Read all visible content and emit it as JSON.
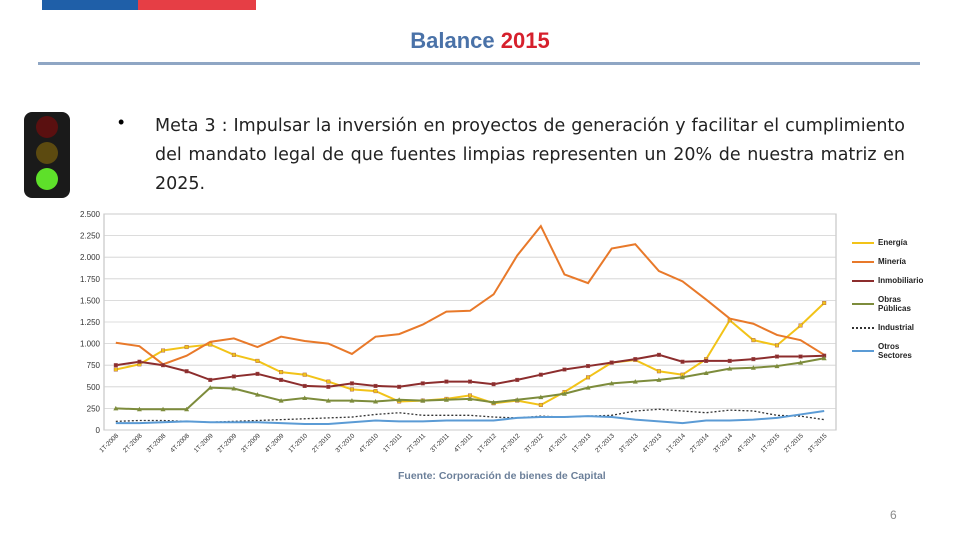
{
  "slide": {
    "title": "Balance",
    "title_year": "2015",
    "bullet": "Meta 3 : Impulsar la inversión en proyectos de generación y facilitar el cumplimiento del mandato legal de que fuentes limpias representen un 20% de nuestra matriz en 2025.",
    "source": "Fuente: Corporación de bienes de Capital",
    "page_number": "6"
  },
  "chart_data": {
    "type": "line",
    "categories": [
      "1T-2008",
      "2T-2008",
      "3T-2008",
      "4T-2008",
      "1T-2009",
      "2T-2009",
      "3T-2009",
      "4T-2009",
      "1T-2010",
      "2T-2010",
      "3T-2010",
      "4T-2010",
      "1T-2011",
      "2T-2011",
      "3T-2011",
      "4T-2011",
      "1T-2012",
      "2T-2012",
      "3T-2012",
      "4T-2012",
      "1T-2013",
      "2T-2013",
      "3T-2013",
      "4T-2013",
      "1T-2014",
      "2T-2014",
      "3T-2014",
      "4T-2014",
      "1T-2015",
      "2T-2015",
      "3T-2015"
    ],
    "ylim": [
      0,
      2500
    ],
    "yticks": [
      0,
      250,
      500,
      750,
      {
        "value": 1000,
        "label": "1.000"
      },
      {
        "value": 1250,
        "label": "1.250"
      },
      {
        "value": 1500,
        "label": "1.500"
      },
      {
        "value": 1750,
        "label": "1.750"
      },
      {
        "value": 2000,
        "label": "2.000"
      },
      {
        "value": 2250,
        "label": "2.250"
      },
      {
        "value": 2500,
        "label": "2.500"
      }
    ],
    "grid": true,
    "series": [
      {
        "name": "Energía",
        "color": "#f2c318",
        "marker": "square",
        "values": [
          700,
          760,
          920,
          960,
          990,
          870,
          800,
          670,
          640,
          560,
          470,
          450,
          330,
          340,
          360,
          400,
          310,
          340,
          290,
          440,
          610,
          780,
          810,
          680,
          640,
          820,
          1270,
          1040,
          980,
          1210,
          1470
        ]
      },
      {
        "name": "Minería",
        "color": "#e8792a",
        "values": [
          1010,
          970,
          760,
          860,
          1020,
          1060,
          960,
          1080,
          1030,
          1000,
          880,
          1080,
          1110,
          1220,
          1370,
          1380,
          1570,
          2020,
          2360,
          1800,
          1700,
          2100,
          2150,
          1840,
          1720,
          1510,
          1290,
          1230,
          1100,
          1040,
          870
        ]
      },
      {
        "name": "Inmobiliario",
        "color": "#8c2d2d",
        "marker": "square",
        "values": [
          750,
          790,
          750,
          680,
          580,
          620,
          650,
          580,
          510,
          500,
          540,
          510,
          500,
          540,
          560,
          560,
          530,
          580,
          640,
          700,
          740,
          780,
          820,
          870,
          790,
          800,
          800,
          820,
          850,
          850,
          860
        ]
      },
      {
        "name": "Obras Públicas",
        "color": "#7d8c3c",
        "marker": "triangle",
        "values": [
          250,
          240,
          240,
          240,
          490,
          480,
          410,
          340,
          370,
          340,
          340,
          330,
          350,
          340,
          350,
          360,
          320,
          350,
          380,
          420,
          490,
          540,
          560,
          580,
          610,
          660,
          710,
          720,
          740,
          780,
          830
        ]
      },
      {
        "name": "Industrial",
        "color": "#333333",
        "dash": "2,2",
        "values": [
          100,
          110,
          110,
          100,
          90,
          100,
          110,
          120,
          130,
          140,
          150,
          180,
          200,
          170,
          170,
          170,
          150,
          140,
          160,
          150,
          160,
          170,
          220,
          240,
          220,
          200,
          230,
          220,
          170,
          160,
          120
        ]
      },
      {
        "name": "Otros Sectores",
        "color": "#5b9bd5",
        "values": [
          80,
          80,
          90,
          100,
          90,
          90,
          90,
          80,
          70,
          70,
          90,
          110,
          100,
          100,
          110,
          110,
          110,
          140,
          150,
          150,
          160,
          150,
          120,
          100,
          80,
          110,
          110,
          120,
          140,
          180,
          220
        ]
      }
    ]
  }
}
